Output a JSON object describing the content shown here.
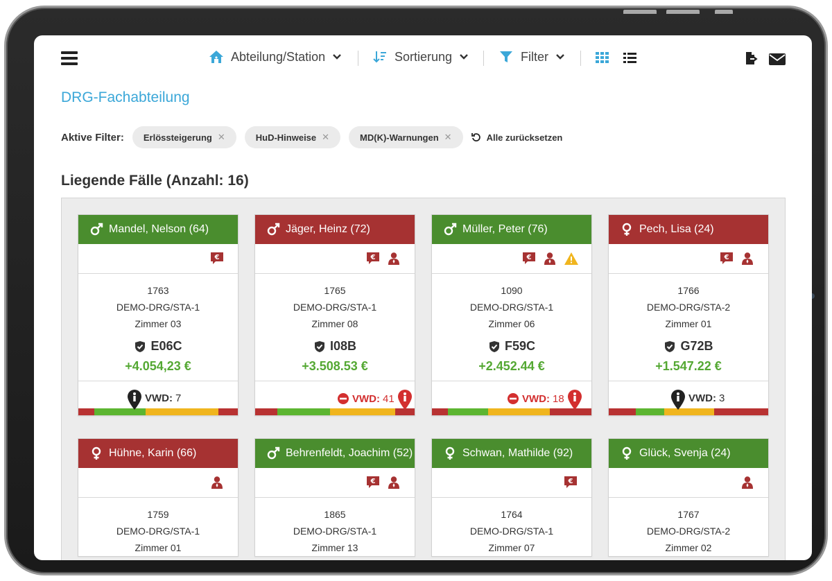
{
  "topbar": {
    "department_label": "Abteilung/Station",
    "sort_label": "Sortierung",
    "filter_label": "Filter"
  },
  "page": {
    "department_title": "DRG-Fachabteilung",
    "active_filters_label": "Aktive Filter:",
    "filters": [
      "Erlössteigerung",
      "HuD-Hinweise",
      "MD(K)-Warnungen"
    ],
    "reset_label": "Alle zurücksetzen",
    "cases_title": "Liegende Fälle (Anzahl: 16)"
  },
  "colors": {
    "accent": "#3ba7d8",
    "header_green": "#4a8d2e",
    "header_red": "#a63232",
    "revenue_green": "#54a833",
    "alert_red": "#d32f2f",
    "bar_red": "#b83232",
    "bar_green": "#5cb531",
    "bar_yellow": "#f0b51e"
  },
  "cards": [
    {
      "name": "Mandel, Nelson (64)",
      "gender": "male",
      "status": "green",
      "icons": [
        "euro-comment-icon"
      ],
      "id": "1763",
      "station": "DEMO-DRG/STA-1",
      "room": "Zimmer 03",
      "drg": "E06C",
      "revenue": "+4.054,23 €",
      "vwd_label": "VWD:",
      "vwd_value": "7",
      "vwd_alert": false
    },
    {
      "name": "Jäger, Heinz (72)",
      "gender": "male",
      "status": "red",
      "icons": [
        "euro-comment-icon",
        "doctor-icon"
      ],
      "id": "1765",
      "station": "DEMO-DRG/STA-1",
      "room": "Zimmer 08",
      "drg": "I08B",
      "revenue": "+3.508.53 €",
      "vwd_label": "VWD:",
      "vwd_value": "41",
      "vwd_alert": true
    },
    {
      "name": "Müller, Peter (76)",
      "gender": "male",
      "status": "green",
      "icons": [
        "euro-comment-icon",
        "doctor-icon",
        "warning-icon"
      ],
      "id": "1090",
      "station": "DEMO-DRG/STA-1",
      "room": "Zimmer 06",
      "drg": "F59C",
      "revenue": "+2.452.44 €",
      "vwd_label": "VWD:",
      "vwd_value": "18",
      "vwd_alert": true
    },
    {
      "name": "Pech, Lisa (24)",
      "gender": "female",
      "status": "red",
      "icons": [
        "euro-comment-icon",
        "doctor-icon"
      ],
      "id": "1766",
      "station": "DEMO-DRG/STA-2",
      "room": "Zimmer 01",
      "drg": "G72B",
      "revenue": "+1.547.22 €",
      "vwd_label": "VWD:",
      "vwd_value": "3",
      "vwd_alert": false
    },
    {
      "name": "Hühne, Karin (66)",
      "gender": "female",
      "status": "red",
      "icons": [
        "doctor-icon"
      ],
      "id": "1759",
      "station": "DEMO-DRG/STA-1",
      "room": "Zimmer 01"
    },
    {
      "name": "Behrenfeldt, Joachim (52)",
      "gender": "male",
      "status": "green",
      "icons": [
        "euro-comment-icon",
        "doctor-icon"
      ],
      "id": "1865",
      "station": "DEMO-DRG/STA-1",
      "room": "Zimmer 13"
    },
    {
      "name": "Schwan, Mathilde (92)",
      "gender": "female",
      "status": "green",
      "icons": [
        "euro-comment-icon"
      ],
      "id": "1764",
      "station": "DEMO-DRG/STA-1",
      "room": "Zimmer 07"
    },
    {
      "name": "Glück, Svenja (24)",
      "gender": "female",
      "status": "green",
      "icons": [
        "doctor-icon"
      ],
      "id": "1767",
      "station": "DEMO-DRG/STA-2",
      "room": "Zimmer 02"
    }
  ]
}
